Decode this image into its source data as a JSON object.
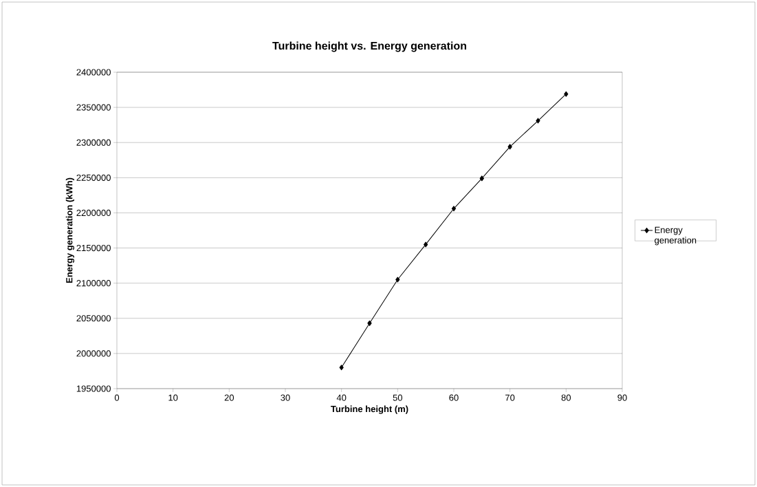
{
  "chart_data": {
    "type": "line",
    "title": "Turbine height vs. Energy generation",
    "xlabel": "Turbine height (m)",
    "ylabel": "Energy generation (kWh)",
    "x": [
      40,
      45,
      50,
      55,
      60,
      65,
      70,
      75,
      80
    ],
    "series": [
      {
        "name": "Energy generation",
        "color": "#000000",
        "values": [
          1980000,
          2043000,
          2105000,
          2155000,
          2206000,
          2249000,
          2294000,
          2331000,
          2369000
        ]
      }
    ],
    "xlim": [
      0,
      90
    ],
    "xticks": [
      0,
      10,
      20,
      30,
      40,
      50,
      60,
      70,
      80,
      90
    ],
    "ylim": [
      1950000,
      2400000
    ],
    "yticks": [
      1950000,
      2000000,
      2050000,
      2100000,
      2150000,
      2200000,
      2250000,
      2300000,
      2350000,
      2400000
    ],
    "grid": "y",
    "legend": "right",
    "marker": "diamond",
    "line_style": "solid"
  }
}
